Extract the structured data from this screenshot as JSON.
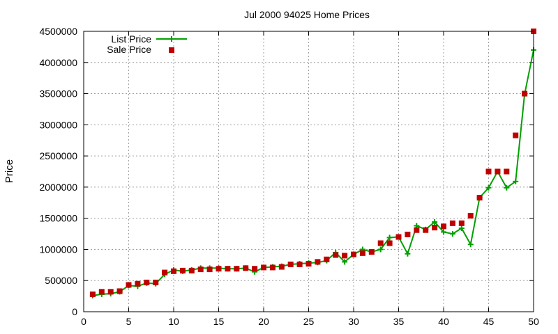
{
  "chart_data": {
    "type": "line",
    "title": "Jul 2000 94025 Home Prices",
    "xlabel": "",
    "ylabel": "Price",
    "xlim": [
      0,
      50
    ],
    "ylim": [
      0,
      4500000
    ],
    "x_ticks": [
      0,
      5,
      10,
      15,
      20,
      25,
      30,
      35,
      40,
      45,
      50
    ],
    "y_ticks": [
      0,
      500000,
      1000000,
      1500000,
      2000000,
      2500000,
      3000000,
      3500000,
      4000000,
      4500000
    ],
    "grid": true,
    "legend_position": "top-left",
    "series": [
      {
        "name": "List Price",
        "style": "line-plus",
        "color": "#00a000",
        "x": [
          1,
          2,
          3,
          4,
          5,
          6,
          7,
          8,
          9,
          10,
          11,
          12,
          13,
          14,
          15,
          16,
          17,
          18,
          19,
          20,
          21,
          22,
          23,
          24,
          25,
          26,
          27,
          28,
          29,
          30,
          31,
          32,
          33,
          34,
          35,
          36,
          37,
          38,
          39,
          40,
          41,
          42,
          43,
          44,
          45,
          46,
          47,
          48,
          49,
          50
        ],
        "values": [
          260000,
          280000,
          290000,
          320000,
          420000,
          410000,
          460000,
          450000,
          600000,
          670000,
          650000,
          670000,
          700000,
          700000,
          700000,
          690000,
          690000,
          700000,
          640000,
          710000,
          720000,
          730000,
          760000,
          770000,
          780000,
          790000,
          820000,
          950000,
          800000,
          920000,
          1000000,
          960000,
          1000000,
          1190000,
          1200000,
          930000,
          1380000,
          1320000,
          1440000,
          1280000,
          1250000,
          1340000,
          1080000,
          1830000,
          1990000,
          2250000,
          1990000,
          2090000,
          3490000,
          4200000
        ]
      },
      {
        "name": "Sale Price",
        "style": "points-square",
        "color": "#c00000",
        "x": [
          1,
          2,
          3,
          4,
          5,
          6,
          7,
          8,
          9,
          10,
          11,
          12,
          13,
          14,
          15,
          16,
          17,
          18,
          19,
          20,
          21,
          22,
          23,
          24,
          25,
          26,
          27,
          28,
          29,
          30,
          31,
          32,
          33,
          34,
          35,
          36,
          37,
          38,
          39,
          40,
          41,
          42,
          43,
          44,
          45,
          46,
          47,
          48,
          49,
          50
        ],
        "values": [
          280000,
          320000,
          320000,
          330000,
          430000,
          450000,
          470000,
          470000,
          630000,
          650000,
          660000,
          660000,
          680000,
          680000,
          690000,
          690000,
          690000,
          700000,
          690000,
          710000,
          710000,
          720000,
          760000,
          760000,
          770000,
          800000,
          840000,
          910000,
          900000,
          920000,
          940000,
          960000,
          1100000,
          1100000,
          1200000,
          1240000,
          1310000,
          1310000,
          1350000,
          1370000,
          1420000,
          1420000,
          1540000,
          1830000,
          2250000,
          2250000,
          2250000,
          2830000,
          3500000,
          4500000
        ]
      }
    ]
  }
}
